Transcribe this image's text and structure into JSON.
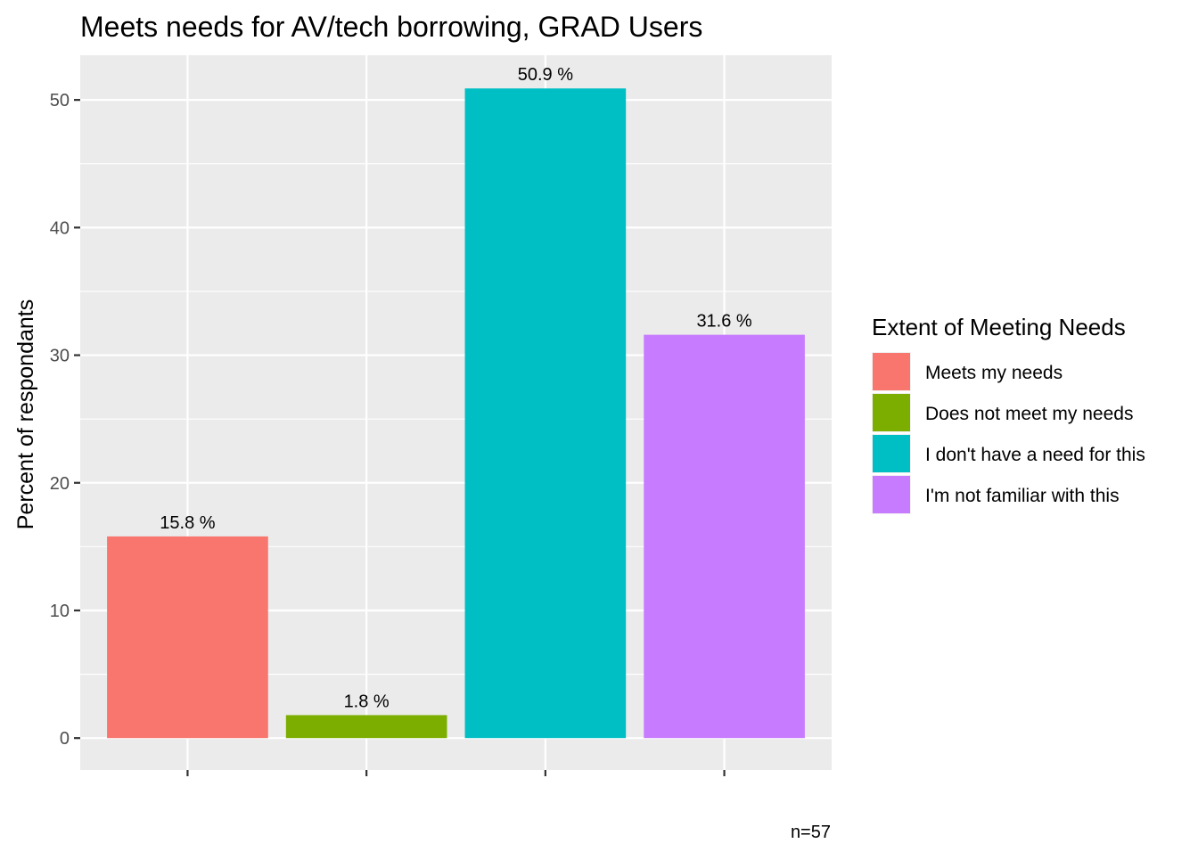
{
  "chart_data": {
    "type": "bar",
    "title": "Meets needs for AV/tech borrowing, GRAD Users",
    "xlabel": "",
    "ylabel": "Percent of respondants",
    "ylim": [
      -2.5,
      53.5
    ],
    "yticks": [
      0,
      10,
      20,
      30,
      40,
      50
    ],
    "grid": true,
    "categories": [
      "Meets my needs",
      "Does not meet my needs",
      "I don't have a need for this",
      "I'm not familiar with this"
    ],
    "values": [
      15.8,
      1.8,
      50.9,
      31.6
    ],
    "data_labels": [
      "15.8 %",
      "1.8 %",
      "50.9 %",
      "31.6 %"
    ],
    "colors": [
      "#F8766D",
      "#7CAE00",
      "#00BFC4",
      "#C77CFF"
    ],
    "legend": {
      "title": "Extent of Meeting Needs",
      "position": "right",
      "entries": [
        "Meets my needs",
        "Does not meet my needs",
        "I don't have a need for this",
        "I'm not familiar with this"
      ]
    },
    "caption": "n=57",
    "panel_background": "#EBEBEB",
    "grid_color": "#FFFFFF"
  }
}
